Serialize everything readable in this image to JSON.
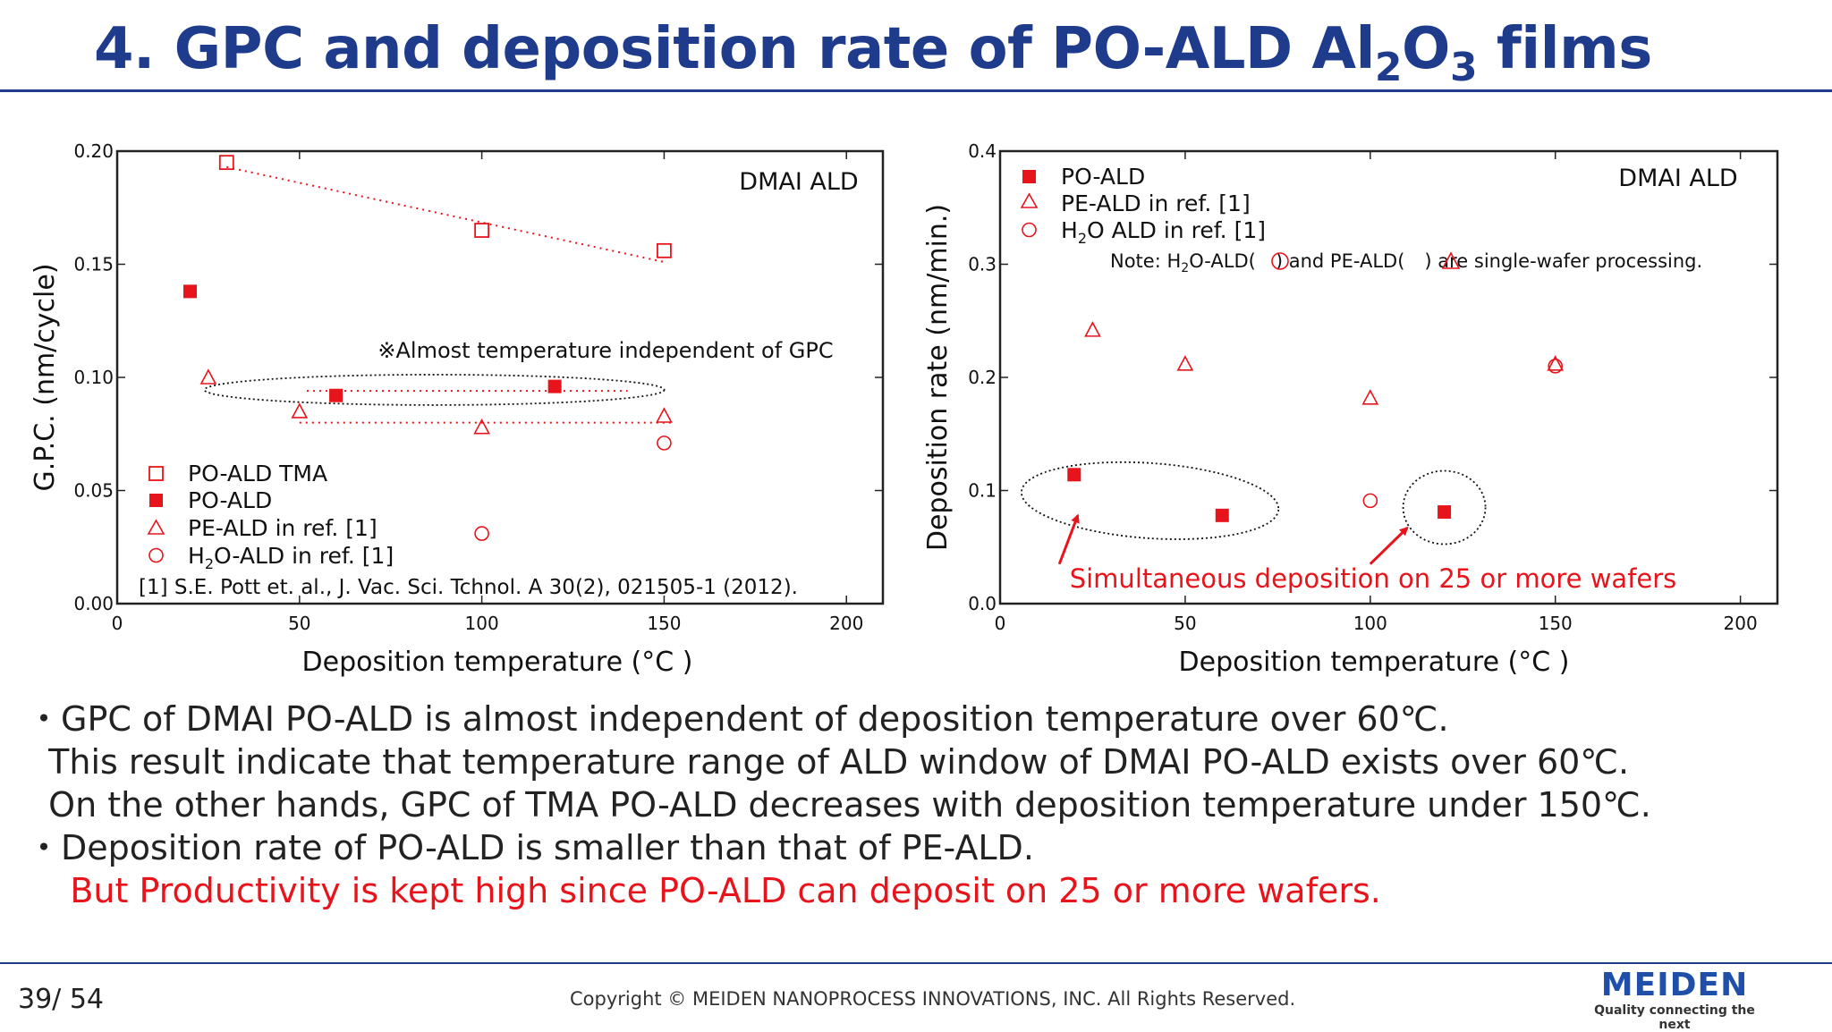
{
  "header": {
    "title_prefix": "4. GPC and deposition rate of PO-ALD Al",
    "title_sub1": "2",
    "title_mid": "O",
    "title_sub2": "3",
    "title_suffix": " films"
  },
  "chart_data": [
    {
      "type": "scatter",
      "title": "DMAI ALD",
      "xlabel": "Deposition temperature (°C )",
      "ylabel": "G.P.C. (nm/cycle)",
      "xlim": [
        0,
        210
      ],
      "ylim": [
        0,
        0.2
      ],
      "xticks": [
        0,
        50,
        100,
        150,
        200
      ],
      "yticks": [
        0.0,
        0.05,
        0.1,
        0.15,
        0.2
      ],
      "ytick_labels": [
        "0.00",
        "0.05",
        "0.10",
        "0.15",
        "0.20"
      ],
      "series": [
        {
          "name": "PO-ALD TMA",
          "marker": "open-square",
          "color": "#e8141c",
          "x": [
            30,
            100,
            150
          ],
          "y": [
            0.195,
            0.165,
            0.156
          ]
        },
        {
          "name": "PO-ALD",
          "marker": "filled-square",
          "color": "#e8141c",
          "x": [
            20,
            60,
            120
          ],
          "y": [
            0.138,
            0.092,
            0.096
          ]
        },
        {
          "name": "PE-ALD  in ref. [1]",
          "marker": "open-triangle",
          "color": "#e8141c",
          "x": [
            25,
            50,
            100,
            150
          ],
          "y": [
            0.1,
            0.085,
            0.078,
            0.083
          ]
        },
        {
          "name": "H2O-ALD  in ref. [1]",
          "marker": "open-circle",
          "color": "#e8141c",
          "x": [
            100,
            150
          ],
          "y": [
            0.031,
            0.071
          ]
        }
      ],
      "annotation": "※Almost temperature independent of GPC",
      "reference": "[1] S.E. Pott et. al., J. Vac. Sci. Tchnol. A 30(2), 021505-1 (2012).",
      "legend": {
        "tma": "PO-ALD TMA",
        "po": "PO-ALD",
        "pe": "PE-ALD  in ref. [1]",
        "h2o_pre": "H",
        "h2o_sub": "2",
        "h2o_post": "O-ALD  in ref. [1]"
      }
    },
    {
      "type": "scatter",
      "title": "DMAI ALD",
      "xlabel": "Deposition temperature (°C )",
      "ylabel": "Deposition rate (nm/min.)",
      "xlim": [
        0,
        210
      ],
      "ylim": [
        0,
        0.4
      ],
      "xticks": [
        0,
        50,
        100,
        150,
        200
      ],
      "yticks": [
        0.0,
        0.1,
        0.2,
        0.3,
        0.4
      ],
      "ytick_labels": [
        "0.0",
        "0.1",
        "0.2",
        "0.3",
        "0.4"
      ],
      "series": [
        {
          "name": "PO-ALD",
          "marker": "filled-square",
          "color": "#e8141c",
          "x": [
            20,
            60,
            120
          ],
          "y": [
            0.114,
            0.078,
            0.081
          ]
        },
        {
          "name": "PE-ALD in ref. [1]",
          "marker": "open-triangle",
          "color": "#e8141c",
          "x": [
            25,
            50,
            100,
            150
          ],
          "y": [
            0.242,
            0.212,
            0.182,
            0.212
          ]
        },
        {
          "name": "H2O ALD in ref. [1]",
          "marker": "open-circle",
          "color": "#e8141c",
          "x": [
            100,
            150
          ],
          "y": [
            0.091,
            0.21
          ]
        }
      ],
      "note": {
        "pre": "Note: H",
        "sub": "2",
        "mid1": "O-ALD(",
        "mid2": ") and  PE-ALD(",
        "post": ") are single-wafer processing."
      },
      "annotation": "Simultaneous deposition on 25 or more wafers",
      "legend": {
        "po": "PO-ALD",
        "pe": "PE-ALD in ref. [1]",
        "h2o_pre": "H",
        "h2o_sub": "2",
        "h2o_post": "O ALD in ref. [1]"
      }
    }
  ],
  "bullets": [
    "・GPC of DMAI PO-ALD is almost independent of deposition temperature over 60℃.",
    "  This result indicate that temperature range of ALD window of DMAI PO-ALD exists over 60℃.",
    "  On the other hands, GPC of TMA PO-ALD decreases with deposition temperature under 150℃.",
    "・Deposition rate of PO-ALD is smaller than that of PE-ALD.",
    "    But Productivity is kept high since PO-ALD can deposit on 25 or more wafers."
  ],
  "footer": {
    "page": "39∕ 54",
    "copyright": "Copyright © MEIDEN NANOPROCESS INNOVATIONS, INC. All Rights Reserved.",
    "brand": "MEIDEN",
    "tagline": "Quality connecting the next"
  },
  "colors": {
    "accent": "#1f3b8c",
    "data": "#e8141c",
    "brand": "#1f4fa8"
  }
}
